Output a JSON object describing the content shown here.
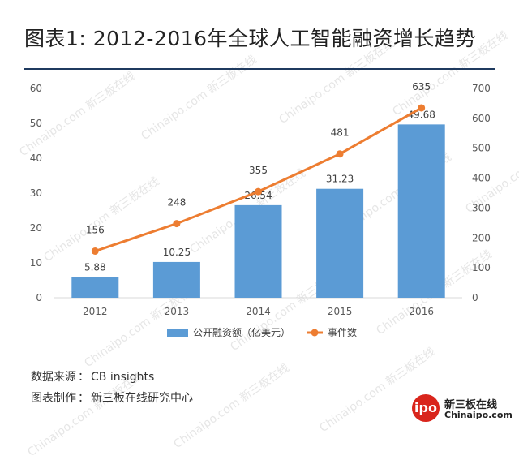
{
  "chart_data": {
    "type": "bar",
    "title": "图表1: 2012-2016年全球人工智能融资增长趋势",
    "categories": [
      "2012",
      "2013",
      "2014",
      "2015",
      "2016"
    ],
    "series": [
      {
        "name": "公开融资额（亿美元）",
        "type": "bar",
        "axis": "left",
        "values": [
          5.88,
          10.25,
          26.54,
          31.23,
          49.68
        ],
        "labels": [
          "5.88",
          "10.25",
          "26.54",
          "31.23",
          "49.68"
        ],
        "color": "#5b9bd5"
      },
      {
        "name": "事件数",
        "type": "line",
        "axis": "right",
        "values": [
          156,
          248,
          355,
          481,
          635
        ],
        "labels": [
          "156",
          "248",
          "355",
          "481",
          "635"
        ],
        "color": "#ed7d31"
      }
    ],
    "left_axis": {
      "ylim": [
        0,
        60
      ],
      "ticks": [
        "0",
        "10",
        "20",
        "30",
        "40",
        "50",
        "60"
      ]
    },
    "right_axis": {
      "ylim": [
        0,
        700
      ],
      "ticks": [
        "0",
        "100",
        "200",
        "300",
        "400",
        "500",
        "600",
        "700"
      ]
    },
    "legend": "bottom"
  },
  "source": {
    "label": "数据来源",
    "sep": "：",
    "value": "CB insights"
  },
  "producer": {
    "label": "图表制作",
    "sep": "：",
    "value": "新三板在线研究中心"
  },
  "logo": {
    "mark": "ipo",
    "name_cn": "新三板在线",
    "name_en": "Chinaipo.com"
  },
  "watermark": {
    "text_en": "Chinaipo.com",
    "text_cn": "新三板在线"
  }
}
